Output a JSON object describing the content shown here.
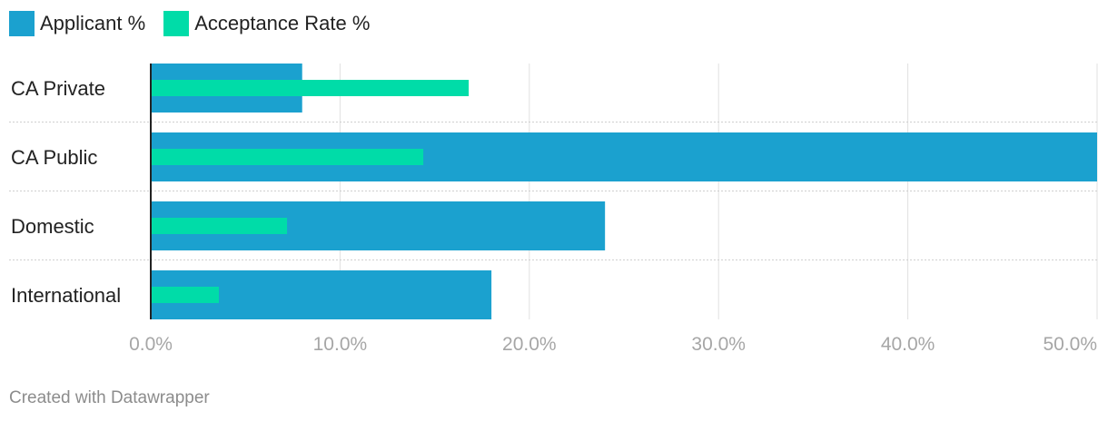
{
  "legend": {
    "items": [
      {
        "label": "Applicant %",
        "color": "#1ba1cf"
      },
      {
        "label": "Acceptance Rate %",
        "color": "#00dca8"
      }
    ]
  },
  "footer": {
    "text": "Created with Datawrapper"
  },
  "chart_data": {
    "type": "bar",
    "orientation": "horizontal",
    "categories": [
      "CA Private",
      "CA Public",
      "Domestic",
      "International"
    ],
    "series": [
      {
        "name": "Applicant %",
        "values": [
          8.0,
          50.0,
          24.0,
          18.0
        ],
        "color": "#1ba1cf"
      },
      {
        "name": "Acceptance Rate %",
        "values": [
          16.8,
          14.4,
          7.2,
          3.6
        ],
        "color": "#00dca8"
      }
    ],
    "xlim": [
      0,
      50
    ],
    "xticks": [
      0,
      10,
      20,
      30,
      40,
      50
    ],
    "xtick_labels": [
      "0.0%",
      "10.0%",
      "20.0%",
      "30.0%",
      "40.0%",
      "50.0%"
    ],
    "grid": true,
    "legend_position": "top-left",
    "title": "",
    "xlabel": "",
    "ylabel": ""
  }
}
